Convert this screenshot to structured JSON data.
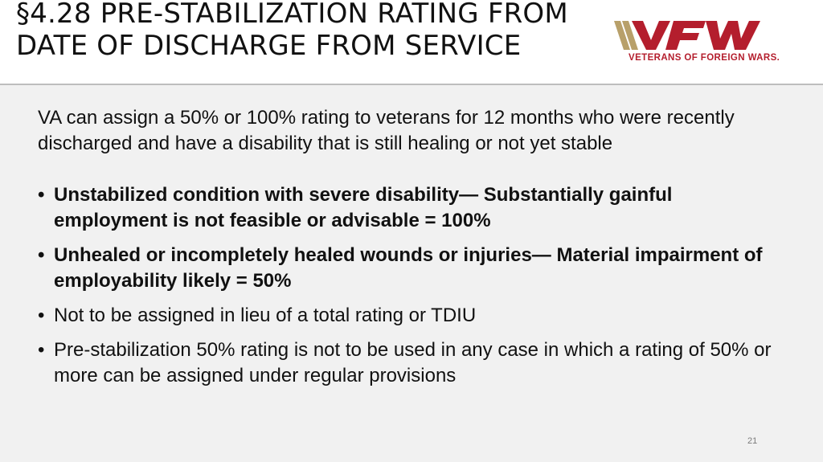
{
  "slide": {
    "title": "§4.28 PRE-STABILIZATION RATING FROM DATE OF DISCHARGE FROM SERVICE",
    "logo": {
      "letters": "VFW",
      "tagline": "VETERANS OF FOREIGN WARS.",
      "color": "#b41e2d",
      "stripe_color": "#b8a06a"
    },
    "intro": "VA can assign a 50% or 100% rating to veterans for 12 months who were recently discharged and have a disability that is still healing or not yet stable",
    "bullets": [
      {
        "text": "Unstabilized condition with severe disability— Substantially gainful employment is not feasible or advisable = 100%",
        "bold": true
      },
      {
        "text": "Unhealed or incompletely healed wounds or injuries— Material impairment of employability likely = 50%",
        "bold": true
      },
      {
        "text": "Not to be assigned in lieu of a total rating or TDIU",
        "bold": false
      },
      {
        "text": "Pre-stabilization 50% rating is not to be used in any case in which a rating of 50% or more can be assigned under regular provisions",
        "bold": false
      }
    ],
    "page_number": "21"
  }
}
